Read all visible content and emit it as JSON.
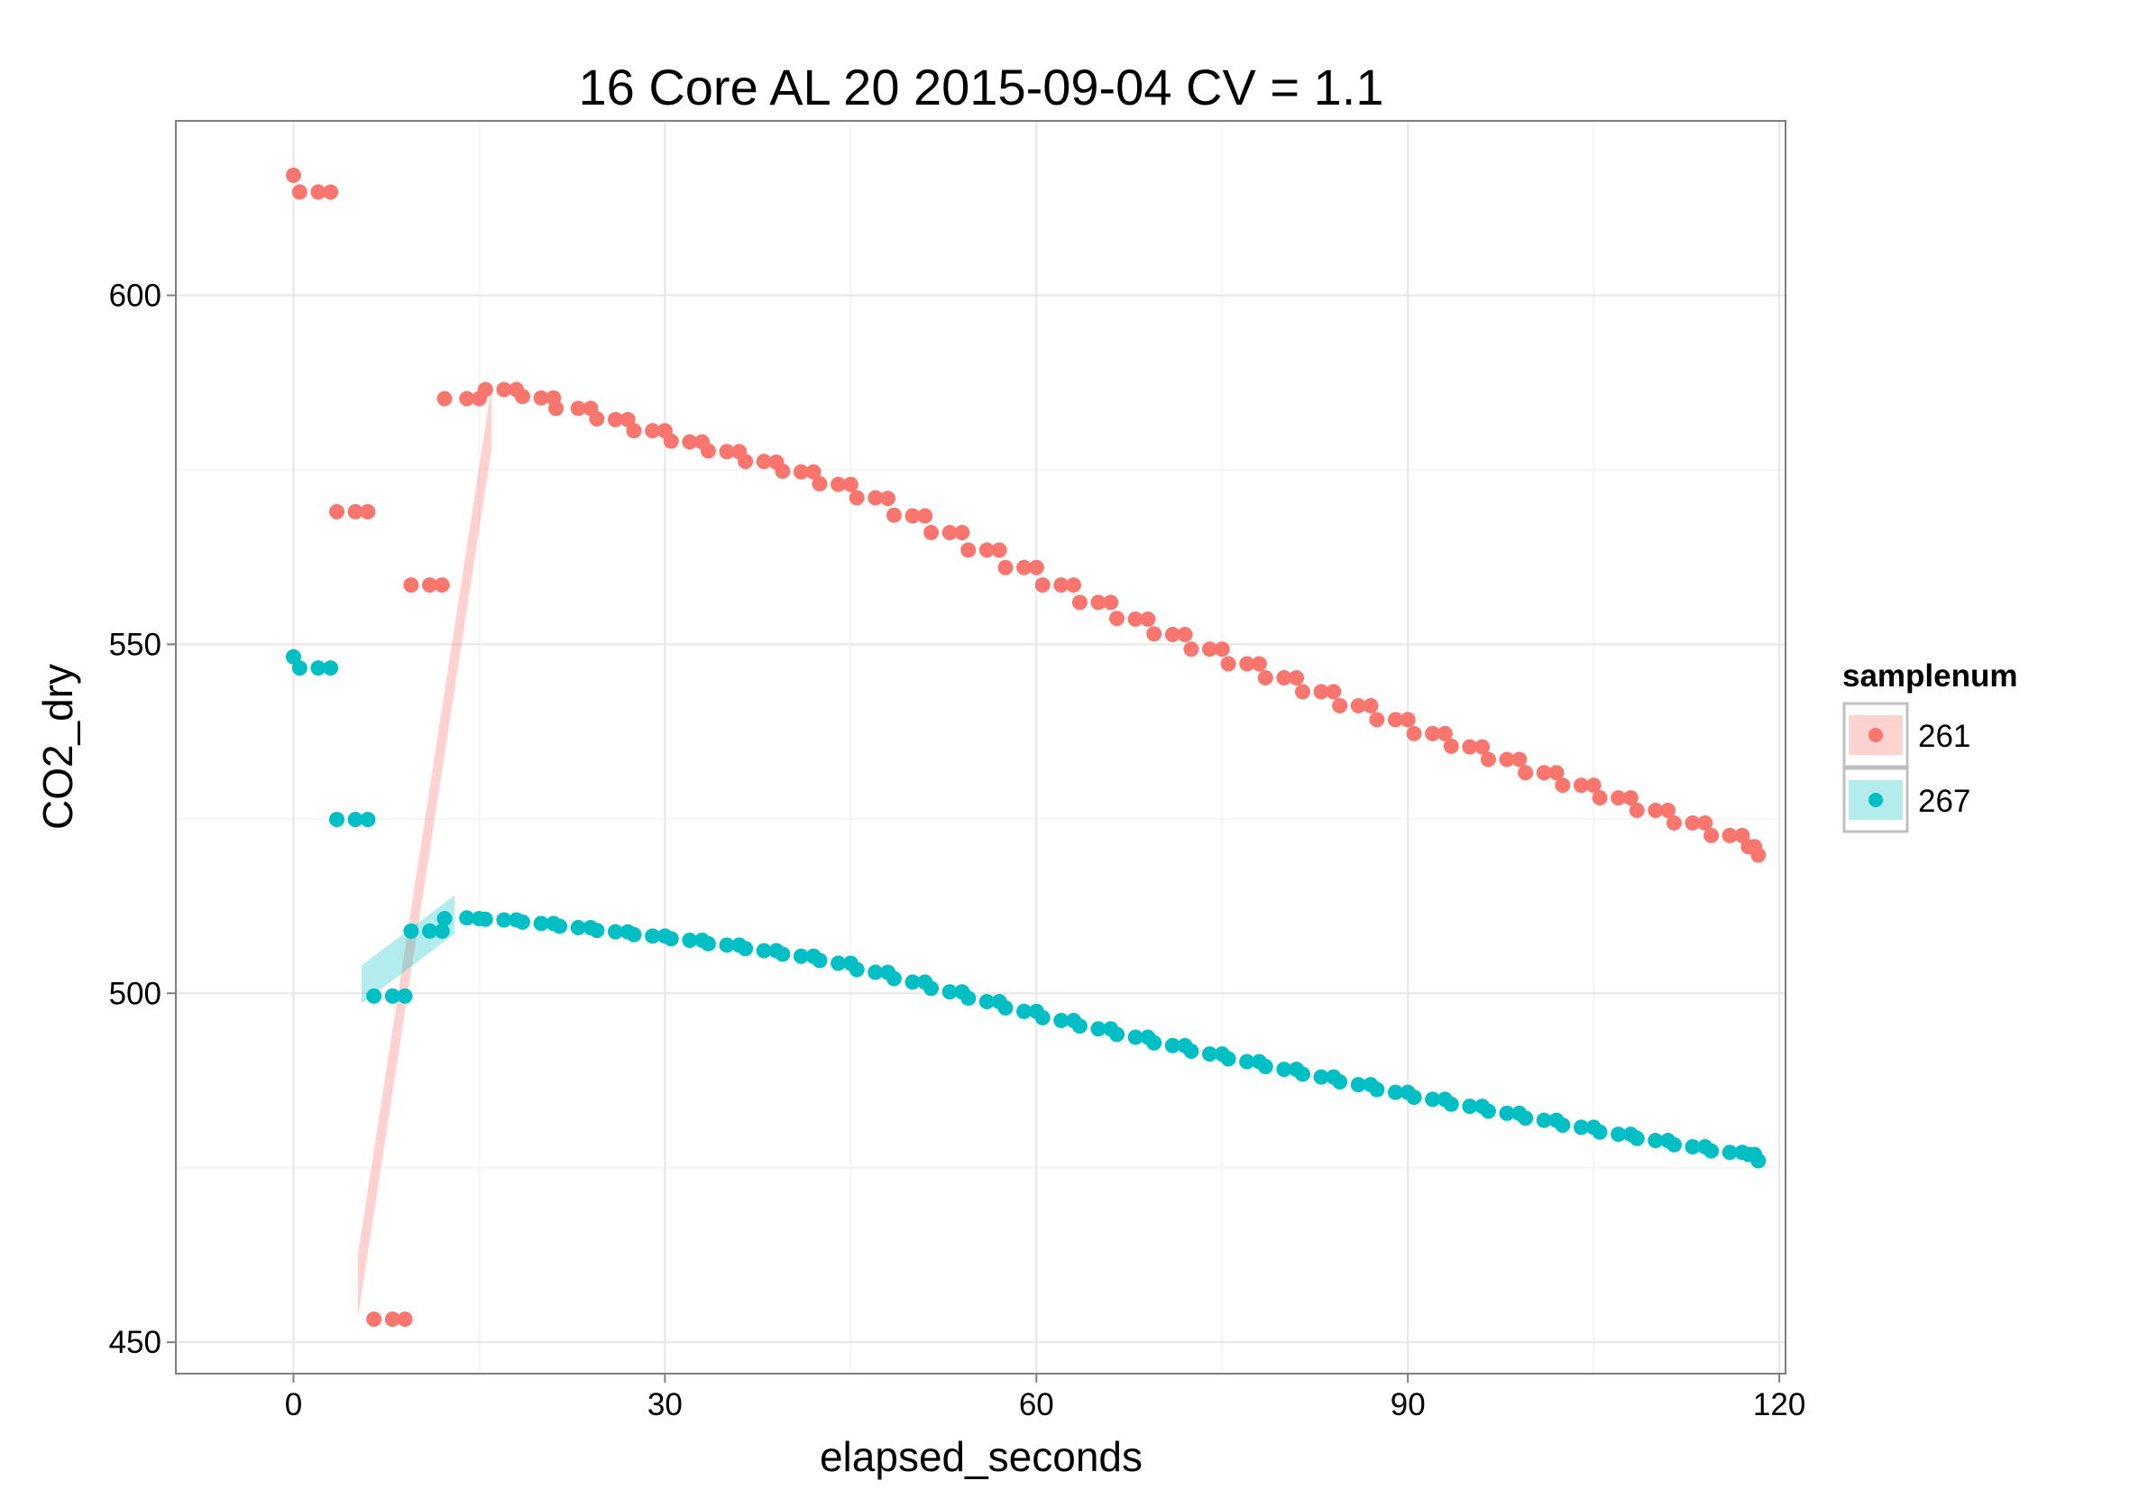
{
  "chart_data": {
    "type": "scatter",
    "title": "16 Core AL 20 2015-09-04 CV = 1.1",
    "xlabel": "elapsed_seconds",
    "ylabel": "CO2_dry",
    "xlim": [
      -9.5,
      120.5
    ],
    "ylim": [
      445.5,
      625
    ],
    "x_ticks": [
      0,
      30,
      60,
      90,
      120
    ],
    "y_ticks": [
      450,
      500,
      550,
      600
    ],
    "x_tick_labels": [
      "0",
      "30",
      "60",
      "90",
      "120"
    ],
    "y_tick_labels": [
      "450",
      "500",
      "550",
      "600"
    ],
    "grid": true,
    "legend": {
      "title": "samplenum",
      "position": "right"
    },
    "series": [
      {
        "name": "261",
        "color": "#F8766D",
        "points": [
          [
            0,
            617.2
          ],
          [
            0.5,
            614.8
          ],
          [
            2,
            614.8
          ],
          [
            3,
            614.8
          ],
          [
            3.5,
            569
          ],
          [
            5,
            569
          ],
          [
            6,
            569
          ],
          [
            6.5,
            453.3
          ],
          [
            8,
            453.3
          ],
          [
            9,
            453.3
          ],
          [
            9.5,
            558.5
          ],
          [
            11,
            558.5
          ],
          [
            12,
            558.5
          ],
          [
            12.2,
            585.2
          ],
          [
            14,
            585.2
          ],
          [
            15,
            585.2
          ],
          [
            15.5,
            586.5
          ],
          [
            17,
            586.5
          ],
          [
            18,
            586.5
          ],
          [
            18.5,
            585.5
          ],
          [
            20,
            585.3
          ],
          [
            21,
            585.3
          ],
          [
            21.2,
            583.8
          ],
          [
            23,
            583.8
          ],
          [
            24,
            583.8
          ],
          [
            24.5,
            582.3
          ],
          [
            26,
            582.2
          ],
          [
            27,
            582.2
          ],
          [
            27.5,
            580.6
          ],
          [
            29,
            580.6
          ],
          [
            30,
            580.6
          ],
          [
            30.5,
            579.1
          ],
          [
            32,
            579
          ],
          [
            33,
            579
          ],
          [
            33.5,
            577.7
          ],
          [
            35,
            577.6
          ],
          [
            36,
            577.6
          ],
          [
            36.5,
            576.2
          ],
          [
            38,
            576.2
          ],
          [
            39,
            576.1
          ],
          [
            39.5,
            574.8
          ],
          [
            41,
            574.7
          ],
          [
            42,
            574.7
          ],
          [
            42.5,
            573
          ],
          [
            44,
            572.9
          ],
          [
            45,
            572.9
          ],
          [
            45.5,
            571
          ],
          [
            47,
            571
          ],
          [
            48,
            570.9
          ],
          [
            48.5,
            568.5
          ],
          [
            50,
            568.4
          ],
          [
            51,
            568.4
          ],
          [
            51.5,
            566
          ],
          [
            53,
            566
          ],
          [
            54,
            566
          ],
          [
            54.5,
            563.5
          ],
          [
            56,
            563.5
          ],
          [
            57,
            563.5
          ],
          [
            57.5,
            561
          ],
          [
            59,
            561
          ],
          [
            60,
            561
          ],
          [
            60.5,
            558.5
          ],
          [
            62,
            558.5
          ],
          [
            63,
            558.5
          ],
          [
            63.5,
            556
          ],
          [
            65,
            556
          ],
          [
            66,
            556
          ],
          [
            66.5,
            553.7
          ],
          [
            68,
            553.6
          ],
          [
            69,
            553.6
          ],
          [
            69.5,
            551.5
          ],
          [
            71,
            551.4
          ],
          [
            72,
            551.4
          ],
          [
            72.5,
            549.3
          ],
          [
            74,
            549.3
          ],
          [
            75,
            549.3
          ],
          [
            75.5,
            547.2
          ],
          [
            77,
            547.2
          ],
          [
            78,
            547.2
          ],
          [
            78.5,
            545.2
          ],
          [
            80,
            545.2
          ],
          [
            81,
            545.2
          ],
          [
            81.5,
            543.2
          ],
          [
            83,
            543.2
          ],
          [
            84,
            543.2
          ],
          [
            84.5,
            541.2
          ],
          [
            86,
            541.2
          ],
          [
            87,
            541.2
          ],
          [
            87.5,
            539.2
          ],
          [
            89,
            539.2
          ],
          [
            90,
            539.2
          ],
          [
            90.5,
            537.2
          ],
          [
            92,
            537.2
          ],
          [
            93,
            537.2
          ],
          [
            93.5,
            535.4
          ],
          [
            95,
            535.3
          ],
          [
            96,
            535.3
          ],
          [
            96.5,
            533.5
          ],
          [
            98,
            533.5
          ],
          [
            99,
            533.5
          ],
          [
            99.5,
            531.6
          ],
          [
            101,
            531.6
          ],
          [
            102,
            531.6
          ],
          [
            102.5,
            529.8
          ],
          [
            104,
            529.8
          ],
          [
            105,
            529.8
          ],
          [
            105.5,
            528
          ],
          [
            107,
            528
          ],
          [
            108,
            528
          ],
          [
            108.5,
            526.2
          ],
          [
            110,
            526.2
          ],
          [
            111,
            526.2
          ],
          [
            111.5,
            524.4
          ],
          [
            113,
            524.4
          ],
          [
            114,
            524.4
          ],
          [
            114.5,
            522.6
          ],
          [
            116,
            522.6
          ],
          [
            117,
            522.6
          ],
          [
            117.5,
            521
          ],
          [
            118,
            521
          ],
          [
            118.3,
            519.8
          ]
        ]
      },
      {
        "name": "267",
        "color": "#00BFC4",
        "points": [
          [
            0,
            548.2
          ],
          [
            0.5,
            546.6
          ],
          [
            2,
            546.6
          ],
          [
            3,
            546.6
          ],
          [
            3.5,
            524.9
          ],
          [
            5,
            524.9
          ],
          [
            6,
            524.9
          ],
          [
            6.5,
            499.6
          ],
          [
            8,
            499.6
          ],
          [
            9,
            499.6
          ],
          [
            9.5,
            508.9
          ],
          [
            11,
            508.9
          ],
          [
            12,
            508.9
          ],
          [
            12.2,
            510.7
          ],
          [
            14,
            510.8
          ],
          [
            15,
            510.7
          ],
          [
            15.5,
            510.6
          ],
          [
            17,
            510.5
          ],
          [
            18,
            510.5
          ],
          [
            18.5,
            510.2
          ],
          [
            20,
            510
          ],
          [
            21,
            510
          ],
          [
            21.5,
            509.6
          ],
          [
            23,
            509.4
          ],
          [
            24,
            509.4
          ],
          [
            24.5,
            509
          ],
          [
            26,
            508.8
          ],
          [
            27,
            508.8
          ],
          [
            27.5,
            508.4
          ],
          [
            29,
            508.2
          ],
          [
            30,
            508.2
          ],
          [
            30.5,
            507.8
          ],
          [
            32,
            507.6
          ],
          [
            33,
            507.6
          ],
          [
            33.5,
            507.1
          ],
          [
            35,
            506.9
          ],
          [
            36,
            506.9
          ],
          [
            36.5,
            506.4
          ],
          [
            38,
            506.1
          ],
          [
            39,
            506.1
          ],
          [
            39.5,
            505.6
          ],
          [
            41,
            505.3
          ],
          [
            42,
            505.3
          ],
          [
            42.5,
            504.7
          ],
          [
            44,
            504.3
          ],
          [
            45,
            504.3
          ],
          [
            45.5,
            503.4
          ],
          [
            47,
            503
          ],
          [
            48,
            503
          ],
          [
            48.5,
            502.1
          ],
          [
            50,
            501.6
          ],
          [
            51,
            501.6
          ],
          [
            51.5,
            500.7
          ],
          [
            53,
            500.2
          ],
          [
            54,
            500.2
          ],
          [
            54.5,
            499.3
          ],
          [
            56,
            498.8
          ],
          [
            57,
            498.8
          ],
          [
            57.5,
            497.9
          ],
          [
            59,
            497.4
          ],
          [
            60,
            497.4
          ],
          [
            60.5,
            496.5
          ],
          [
            62,
            496.1
          ],
          [
            63,
            496.1
          ],
          [
            63.5,
            495.3
          ],
          [
            65,
            494.9
          ],
          [
            66,
            494.9
          ],
          [
            66.5,
            494.1
          ],
          [
            68,
            493.7
          ],
          [
            69,
            493.7
          ],
          [
            69.5,
            492.9
          ],
          [
            71,
            492.5
          ],
          [
            72,
            492.5
          ],
          [
            72.5,
            491.7
          ],
          [
            74,
            491.3
          ],
          [
            75,
            491.3
          ],
          [
            75.5,
            490.6
          ],
          [
            77,
            490.2
          ],
          [
            78,
            490.2
          ],
          [
            78.5,
            489.5
          ],
          [
            80,
            489.1
          ],
          [
            81,
            489.1
          ],
          [
            81.5,
            488.4
          ],
          [
            83,
            488
          ],
          [
            84,
            488
          ],
          [
            84.5,
            487.3
          ],
          [
            86,
            486.9
          ],
          [
            87,
            486.9
          ],
          [
            87.5,
            486.2
          ],
          [
            89,
            485.8
          ],
          [
            90,
            485.8
          ],
          [
            90.5,
            485.1
          ],
          [
            92,
            484.8
          ],
          [
            93,
            484.8
          ],
          [
            93.5,
            484.1
          ],
          [
            95,
            483.8
          ],
          [
            96,
            483.8
          ],
          [
            96.5,
            483.1
          ],
          [
            98,
            482.8
          ],
          [
            99,
            482.8
          ],
          [
            99.5,
            482.1
          ],
          [
            101,
            481.8
          ],
          [
            102,
            481.8
          ],
          [
            102.5,
            481.1
          ],
          [
            104,
            480.8
          ],
          [
            105,
            480.8
          ],
          [
            105.5,
            480.1
          ],
          [
            107,
            479.8
          ],
          [
            108,
            479.8
          ],
          [
            108.5,
            479.2
          ],
          [
            110,
            478.9
          ],
          [
            111,
            478.9
          ],
          [
            111.5,
            478.3
          ],
          [
            113,
            478
          ],
          [
            114,
            478
          ],
          [
            114.5,
            477.4
          ],
          [
            116,
            477.2
          ],
          [
            117,
            477.2
          ],
          [
            117.5,
            476.9
          ],
          [
            118,
            476.9
          ],
          [
            118.3,
            476
          ]
        ]
      }
    ],
    "smooth_bands": [
      {
        "series": "261",
        "fill": "#F8766D",
        "opacity": 0.33,
        "x": [
          5.2,
          16
        ],
        "y_low": [
          453.5,
          578
        ],
        "y_high": [
          462.5,
          587
        ]
      },
      {
        "series": "267",
        "fill": "#00BFC4",
        "opacity": 0.3,
        "x": [
          5.5,
          13
        ],
        "y_low": [
          498.5,
          508.5
        ],
        "y_high": [
          504,
          514
        ]
      }
    ]
  }
}
